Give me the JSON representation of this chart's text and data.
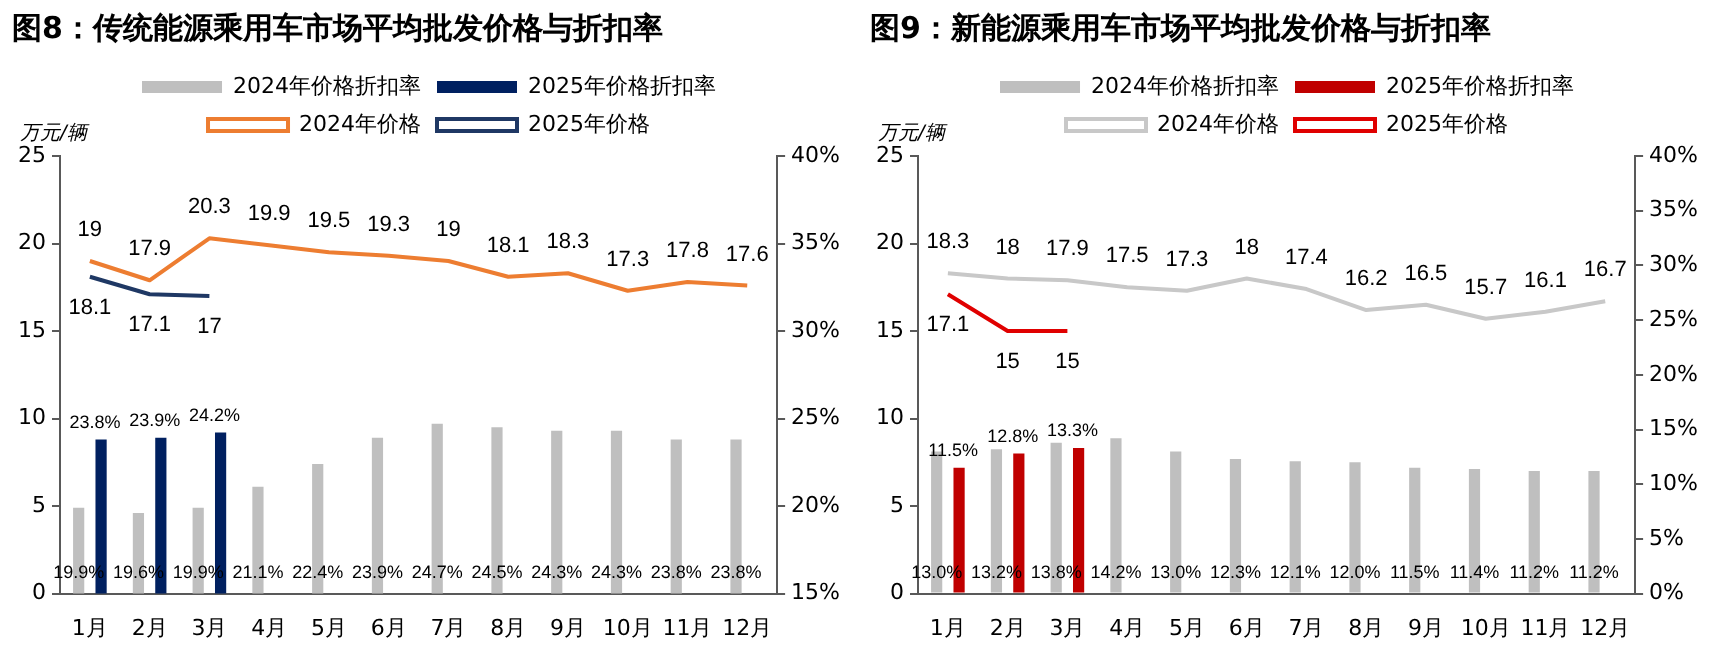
{
  "chart_data": [
    {
      "type": "bar",
      "title": "图8：传统能源乘用车市场平均批发价格与折扣率",
      "ylabel": "万元/辆",
      "categories": [
        "1月",
        "2月",
        "3月",
        "4月",
        "5月",
        "6月",
        "7月",
        "8月",
        "9月",
        "10月",
        "11月",
        "12月"
      ],
      "series": [
        {
          "name": "2024年价格折扣率",
          "axis": "y2",
          "color": "#bfbfbf",
          "values": [
            19.9,
            19.6,
            19.9,
            21.1,
            22.4,
            23.9,
            24.7,
            24.5,
            24.3,
            24.3,
            23.8,
            23.8
          ],
          "value_labels": [
            "19.9%",
            "19.6%",
            "19.9%",
            "21.1%",
            "22.4%",
            "23.9%",
            "24.7%",
            "24.5%",
            "24.3%",
            "24.3%",
            "23.8%",
            "23.8%"
          ]
        },
        {
          "name": "2025年价格折扣率",
          "axis": "y2",
          "color": "#002060",
          "values": [
            23.8,
            23.9,
            24.2,
            null,
            null,
            null,
            null,
            null,
            null,
            null,
            null,
            null
          ],
          "value_labels": [
            "23.8%",
            "23.9%",
            "24.2%",
            null,
            null,
            null,
            null,
            null,
            null,
            null,
            null,
            null
          ]
        },
        {
          "name": "2024年价格",
          "type": "line",
          "color": "#ed7d31",
          "values": [
            19,
            17.9,
            20.3,
            19.9,
            19.5,
            19.3,
            19,
            18.1,
            18.3,
            17.3,
            17.8,
            17.6
          ],
          "value_labels": [
            "19",
            "17.9",
            "20.3",
            "19.9",
            "19.5",
            "19.3",
            "19",
            "18.1",
            "18.3",
            "17.3",
            "17.8",
            "17.6"
          ]
        },
        {
          "name": "2025年价格",
          "type": "line",
          "color": "#1f3864",
          "values": [
            18.1,
            17.1,
            17,
            null,
            null,
            null,
            null,
            null,
            null,
            null,
            null,
            null
          ],
          "value_labels": [
            "18.1",
            "17.1",
            "17",
            null,
            null,
            null,
            null,
            null,
            null,
            null,
            null,
            null
          ]
        }
      ],
      "ylim": [
        0,
        25
      ],
      "yticks": [
        0,
        5,
        10,
        15,
        20,
        25
      ],
      "y2lim": [
        15,
        40
      ],
      "y2ticks": [
        {
          "value": 15,
          "label": "15%"
        },
        {
          "value": 20,
          "label": "20%"
        },
        {
          "value": 25,
          "label": "25%"
        },
        {
          "value": 30,
          "label": "30%"
        },
        {
          "value": 35,
          "label": "35%"
        },
        {
          "value": 40,
          "label": "40%"
        }
      ],
      "grid": false,
      "legend": "top",
      "marker": "none",
      "line_style": "solid"
    },
    {
      "type": "bar",
      "title": "图9：新能源乘用车市场平均批发价格与折扣率",
      "ylabel": "万元/辆",
      "categories": [
        "1月",
        "2月",
        "3月",
        "4月",
        "5月",
        "6月",
        "7月",
        "8月",
        "9月",
        "10月",
        "11月",
        "12月"
      ],
      "series": [
        {
          "name": "2024年价格折扣率",
          "axis": "y2",
          "color": "#bfbfbf",
          "values": [
            13.0,
            13.2,
            13.8,
            14.2,
            13.0,
            12.3,
            12.1,
            12.0,
            11.5,
            11.4,
            11.2,
            11.2
          ],
          "value_labels": [
            "13.0%",
            "13.2%",
            "13.8%",
            "14.2%",
            "13.0%",
            "12.3%",
            "12.1%",
            "12.0%",
            "11.5%",
            "11.4%",
            "11.2%",
            "11.2%"
          ]
        },
        {
          "name": "2025年价格折扣率",
          "axis": "y2",
          "color": "#c00000",
          "values": [
            11.5,
            12.8,
            13.3,
            null,
            null,
            null,
            null,
            null,
            null,
            null,
            null,
            null
          ],
          "value_labels": [
            "11.5%",
            "12.8%",
            "13.3%",
            null,
            null,
            null,
            null,
            null,
            null,
            null,
            null,
            null
          ]
        },
        {
          "name": "2024年价格",
          "type": "line",
          "color": "#c8c8c8",
          "values": [
            18.3,
            18,
            17.9,
            17.5,
            17.3,
            18,
            17.4,
            16.2,
            16.5,
            15.7,
            16.1,
            16.7
          ],
          "value_labels": [
            "18.3",
            "18",
            "17.9",
            "17.5",
            "17.3",
            "18",
            "17.4",
            "16.2",
            "16.5",
            "15.7",
            "16.1",
            "16.7"
          ]
        },
        {
          "name": "2025年价格",
          "type": "line",
          "color": "#e00000",
          "values": [
            17.1,
            15,
            15,
            null,
            null,
            null,
            null,
            null,
            null,
            null,
            null,
            null
          ],
          "value_labels": [
            "17.1",
            "15",
            "15",
            null,
            null,
            null,
            null,
            null,
            null,
            null,
            null,
            null
          ]
        }
      ],
      "ylim": [
        0,
        25
      ],
      "yticks": [
        0,
        5,
        10,
        15,
        20,
        25
      ],
      "y2lim": [
        0,
        40
      ],
      "y2ticks": [
        {
          "value": 0,
          "label": "0%"
        },
        {
          "value": 5,
          "label": "5%"
        },
        {
          "value": 10,
          "label": "10%"
        },
        {
          "value": 15,
          "label": "15%"
        },
        {
          "value": 20,
          "label": "20%"
        },
        {
          "value": 25,
          "label": "25%"
        },
        {
          "value": 30,
          "label": "30%"
        },
        {
          "value": 35,
          "label": "35%"
        },
        {
          "value": 40,
          "label": "40%"
        }
      ],
      "grid": false,
      "legend": "top",
      "marker": "none",
      "line_style": "solid"
    }
  ]
}
